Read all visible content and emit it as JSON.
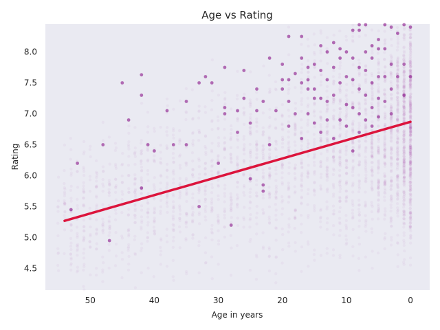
{
  "chart_data": {
    "type": "scatter",
    "title": "Age vs Rating",
    "xlabel": "Age in years",
    "ylabel": "Rating",
    "xlim": [
      57,
      -3
    ],
    "ylim": [
      4.15,
      8.45
    ],
    "x_inverted": true,
    "grid": false,
    "background": "#eaeaf2",
    "x_ticks": [
      50,
      40,
      30,
      20,
      10,
      0
    ],
    "x_tick_labels": [
      "50",
      "40",
      "30",
      "20",
      "10",
      "0"
    ],
    "y_ticks": [
      4.5,
      5.0,
      5.5,
      6.0,
      6.5,
      7.0,
      7.5,
      8.0
    ],
    "y_tick_labels": [
      "4.5",
      "5.0",
      "5.5",
      "6.0",
      "6.5",
      "7.0",
      "7.5",
      "8.0"
    ],
    "series": [
      {
        "kind": "scatter",
        "color": "#800080",
        "points": [
          [
            53,
            5.45
          ],
          [
            52,
            6.2
          ],
          [
            48,
            6.5
          ],
          [
            47,
            4.95
          ],
          [
            45,
            7.5
          ],
          [
            44,
            6.9
          ],
          [
            42,
            7.3
          ],
          [
            42,
            7.63
          ],
          [
            42,
            5.8
          ],
          [
            41,
            6.5
          ],
          [
            40,
            6.4
          ],
          [
            38,
            7.05
          ],
          [
            37,
            6.5
          ],
          [
            35,
            6.5
          ],
          [
            35,
            7.2
          ],
          [
            33,
            7.5
          ],
          [
            33,
            5.5
          ],
          [
            32,
            7.6
          ],
          [
            31,
            7.5
          ],
          [
            30,
            6.2
          ],
          [
            29,
            7.0
          ],
          [
            29,
            7.1
          ],
          [
            29,
            7.75
          ],
          [
            28,
            5.2
          ],
          [
            27,
            7.05
          ],
          [
            27,
            6.7
          ],
          [
            26,
            7.7
          ],
          [
            26,
            7.25
          ],
          [
            25,
            5.95
          ],
          [
            25,
            6.85
          ],
          [
            24,
            7.4
          ],
          [
            24,
            7.05
          ],
          [
            23,
            5.75
          ],
          [
            23,
            7.2
          ],
          [
            23,
            5.85
          ],
          [
            22,
            7.9
          ],
          [
            22,
            6.5
          ],
          [
            21,
            7.05
          ],
          [
            20,
            7.55
          ],
          [
            20,
            7.8
          ],
          [
            20,
            7.4
          ],
          [
            19,
            8.25
          ],
          [
            19,
            7.55
          ],
          [
            19,
            7.2
          ],
          [
            19,
            6.8
          ],
          [
            18,
            7.65
          ],
          [
            18,
            7.0
          ],
          [
            17,
            8.25
          ],
          [
            17,
            7.9
          ],
          [
            17,
            7.5
          ],
          [
            17,
            6.6
          ],
          [
            16,
            7.75
          ],
          [
            16,
            7.55
          ],
          [
            16,
            7.4
          ],
          [
            16,
            7.0
          ],
          [
            15,
            7.25
          ],
          [
            15,
            7.8
          ],
          [
            15,
            7.4
          ],
          [
            15,
            6.85
          ],
          [
            14,
            8.1
          ],
          [
            14,
            7.7
          ],
          [
            14,
            7.25
          ],
          [
            14,
            6.7
          ],
          [
            13,
            7.55
          ],
          [
            13,
            8.0
          ],
          [
            13,
            7.2
          ],
          [
            13,
            6.9
          ],
          [
            12,
            8.15
          ],
          [
            12,
            7.75
          ],
          [
            12,
            7.3
          ],
          [
            12,
            6.6
          ],
          [
            11,
            8.05
          ],
          [
            11,
            7.5
          ],
          [
            11,
            7.9
          ],
          [
            11,
            6.9
          ],
          [
            10,
            8.0
          ],
          [
            10,
            7.6
          ],
          [
            10,
            7.15
          ],
          [
            10,
            6.8
          ],
          [
            9,
            8.35
          ],
          [
            9,
            7.9
          ],
          [
            9,
            7.55
          ],
          [
            9,
            7.1
          ],
          [
            9,
            6.4
          ],
          [
            8,
            8.6
          ],
          [
            8,
            8.35
          ],
          [
            8,
            7.75
          ],
          [
            8,
            7.4
          ],
          [
            8,
            7.0
          ],
          [
            8,
            6.7
          ],
          [
            7,
            8.5
          ],
          [
            7,
            8.0
          ],
          [
            7,
            7.7
          ],
          [
            7,
            7.3
          ],
          [
            7,
            6.9
          ],
          [
            6,
            8.1
          ],
          [
            6,
            7.9
          ],
          [
            6,
            7.5
          ],
          [
            6,
            7.1
          ],
          [
            6,
            6.8
          ],
          [
            5,
            8.2
          ],
          [
            5,
            8.05
          ],
          [
            5,
            7.6
          ],
          [
            5,
            7.25
          ],
          [
            5,
            6.95
          ],
          [
            4,
            8.45
          ],
          [
            4,
            8.05
          ],
          [
            4,
            7.6
          ],
          [
            4,
            7.2
          ],
          [
            3,
            8.4
          ],
          [
            3,
            7.8
          ],
          [
            3,
            7.4
          ],
          [
            3,
            7.0
          ],
          [
            2,
            8.3
          ],
          [
            2,
            7.6
          ],
          [
            1,
            8.45
          ],
          [
            1,
            7.8
          ],
          [
            1,
            7.3
          ],
          [
            0,
            8.4
          ],
          [
            0,
            7.6
          ]
        ]
      },
      {
        "kind": "line",
        "name": "",
        "color": "#dc143c",
        "x": [
          54,
          0
        ],
        "y": [
          5.27,
          6.87
        ]
      }
    ]
  }
}
